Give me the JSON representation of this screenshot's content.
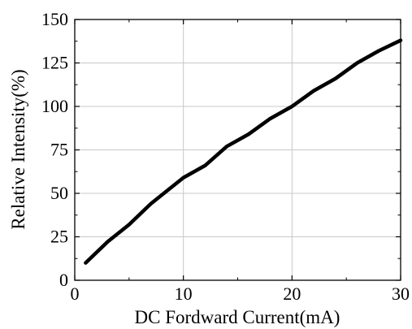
{
  "chart_data": {
    "type": "line",
    "title": "",
    "xlabel": "DC Fordward Current(mA)",
    "ylabel": "Relative Intensity(%)",
    "xlim": [
      0,
      30
    ],
    "ylim": [
      0,
      150
    ],
    "x_ticks": [
      0,
      10,
      20,
      30
    ],
    "x_tick_labels": [
      "0",
      "10",
      "20",
      "30"
    ],
    "y_ticks": [
      0,
      25,
      50,
      75,
      100,
      125,
      150
    ],
    "y_tick_labels": [
      "0",
      "25",
      "50",
      "75",
      "100",
      "125",
      "150"
    ],
    "grid": true,
    "legend": "none",
    "series": [
      {
        "color": "#000000",
        "x": [
          1,
          3,
          5,
          7,
          8,
          10,
          12,
          14,
          16,
          18,
          20,
          22,
          24,
          26,
          28,
          30
        ],
        "y": [
          10,
          22,
          32,
          44,
          49,
          59,
          66,
          77,
          84,
          93,
          100,
          109,
          116,
          125,
          132,
          138
        ]
      }
    ]
  }
}
